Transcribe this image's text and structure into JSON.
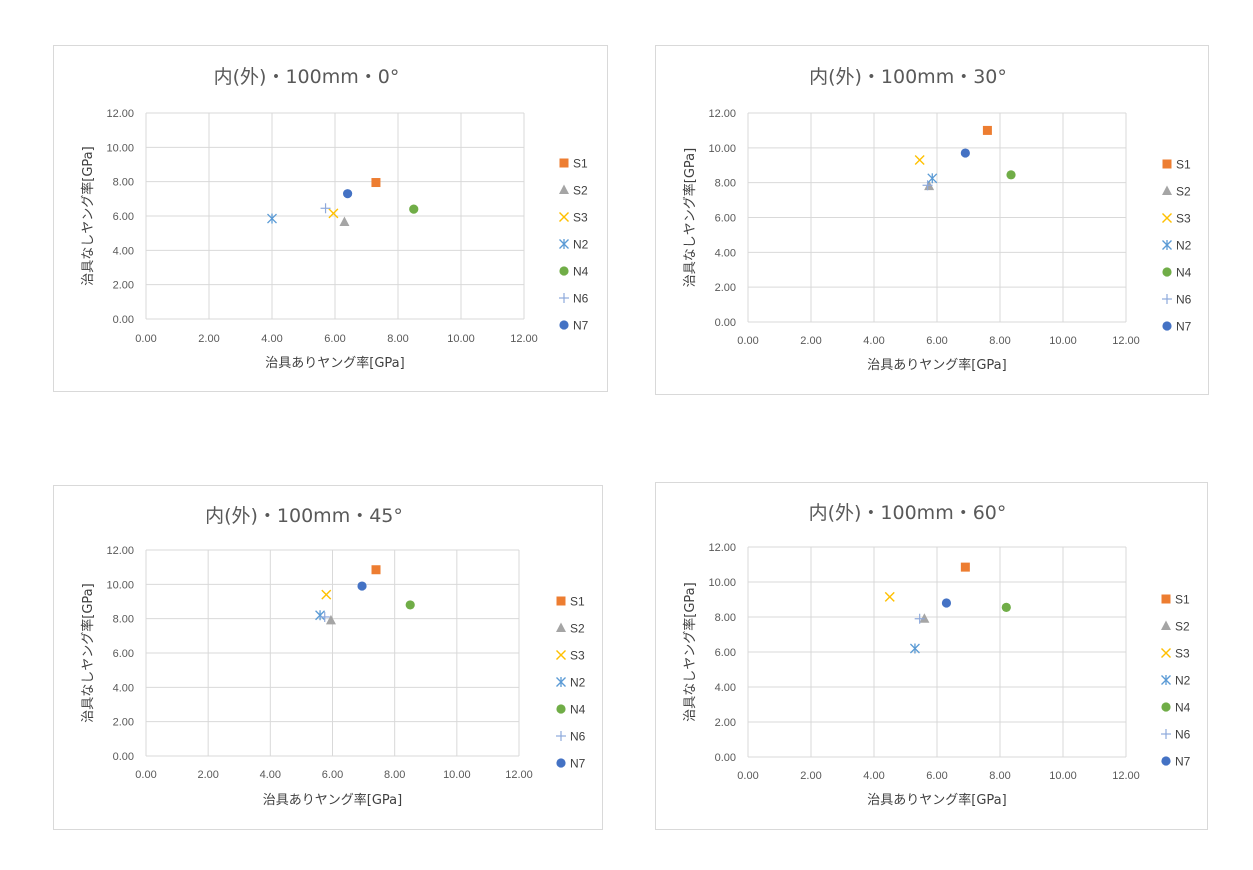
{
  "charts": [
    {
      "title": "内(外)・100mm・0°"
    },
    {
      "title": "内(外)・100mm・30°"
    },
    {
      "title": "内(外)・100mm・45°"
    },
    {
      "title": "内(外)・100mm・60°"
    }
  ],
  "colors": {
    "S1": "#ED7D31",
    "S2": "#A5A5A5",
    "S3": "#FFC000",
    "N2": "#5B9BD5",
    "N4": "#70AD47",
    "N6": "#8EA9DB",
    "N7": "#4472C4"
  },
  "markers": {
    "S1": "square",
    "S2": "triangle",
    "S3": "x",
    "N2": "star",
    "N4": "circle",
    "N6": "plus",
    "N7": "circle"
  },
  "chart_data": [
    {
      "type": "scatter",
      "title": "内(外)・100mm・0°",
      "xlabel": "治具ありヤング率[GPa]",
      "ylabel": "治具なしヤング率[GPa]",
      "xlim": [
        0,
        12
      ],
      "ylim": [
        0,
        12
      ],
      "xticks": [
        "0.00",
        "2.00",
        "4.00",
        "6.00",
        "8.00",
        "10.00",
        "12.00"
      ],
      "yticks": [
        "0.00",
        "2.00",
        "4.00",
        "6.00",
        "8.00",
        "10.00",
        "12.00"
      ],
      "grid": true,
      "legend": "right",
      "series": [
        {
          "name": "S1",
          "x": 7.3,
          "y": 7.95
        },
        {
          "name": "S2",
          "x": 6.3,
          "y": 5.65
        },
        {
          "name": "S3",
          "x": 5.95,
          "y": 6.15
        },
        {
          "name": "N2",
          "x": 4.0,
          "y": 5.85
        },
        {
          "name": "N4",
          "x": 8.5,
          "y": 6.4
        },
        {
          "name": "N6",
          "x": 5.7,
          "y": 6.45
        },
        {
          "name": "N7",
          "x": 6.4,
          "y": 7.3
        }
      ]
    },
    {
      "type": "scatter",
      "title": "内(外)・100mm・30°",
      "xlabel": "治具ありヤング率[GPa]",
      "ylabel": "治具なしヤング率[GPa]",
      "xlim": [
        0,
        12
      ],
      "ylim": [
        0,
        12
      ],
      "xticks": [
        "0.00",
        "2.00",
        "4.00",
        "6.00",
        "8.00",
        "10.00",
        "12.00"
      ],
      "yticks": [
        "0.00",
        "2.00",
        "4.00",
        "6.00",
        "8.00",
        "10.00",
        "12.00"
      ],
      "grid": true,
      "legend": "right",
      "series": [
        {
          "name": "S1",
          "x": 7.6,
          "y": 11.0
        },
        {
          "name": "S2",
          "x": 5.75,
          "y": 7.8
        },
        {
          "name": "S3",
          "x": 5.45,
          "y": 9.3
        },
        {
          "name": "N2",
          "x": 5.85,
          "y": 8.25
        },
        {
          "name": "N4",
          "x": 8.35,
          "y": 8.45
        },
        {
          "name": "N6",
          "x": 5.7,
          "y": 7.85
        },
        {
          "name": "N7",
          "x": 6.9,
          "y": 9.7
        }
      ]
    },
    {
      "type": "scatter",
      "title": "内(外)・100mm・45°",
      "xlabel": "治具ありヤング率[GPa]",
      "ylabel": "治具なしヤング率[GPa]",
      "xlim": [
        0,
        12
      ],
      "ylim": [
        0,
        12
      ],
      "xticks": [
        "0.00",
        "2.00",
        "4.00",
        "6.00",
        "8.00",
        "10.00",
        "12.00"
      ],
      "yticks": [
        "0.00",
        "2.00",
        "4.00",
        "6.00",
        "8.00",
        "10.00",
        "12.00"
      ],
      "grid": true,
      "legend": "right",
      "series": [
        {
          "name": "S1",
          "x": 7.4,
          "y": 10.85
        },
        {
          "name": "S2",
          "x": 5.95,
          "y": 7.9
        },
        {
          "name": "S3",
          "x": 5.8,
          "y": 9.4
        },
        {
          "name": "N2",
          "x": 5.6,
          "y": 8.2
        },
        {
          "name": "N4",
          "x": 8.5,
          "y": 8.8
        },
        {
          "name": "N6",
          "x": 5.75,
          "y": 8.1
        },
        {
          "name": "N7",
          "x": 6.95,
          "y": 9.9
        }
      ]
    },
    {
      "type": "scatter",
      "title": "内(外)・100mm・60°",
      "xlabel": "治具ありヤング率[GPa]",
      "ylabel": "治具なしヤング率[GPa]",
      "xlim": [
        0,
        12
      ],
      "ylim": [
        0,
        12
      ],
      "xticks": [
        "0.00",
        "2.00",
        "4.00",
        "6.00",
        "8.00",
        "10.00",
        "12.00"
      ],
      "yticks": [
        "0.00",
        "2.00",
        "4.00",
        "6.00",
        "8.00",
        "10.00",
        "12.00"
      ],
      "grid": true,
      "legend": "right",
      "series": [
        {
          "name": "S1",
          "x": 6.9,
          "y": 10.85
        },
        {
          "name": "S2",
          "x": 5.6,
          "y": 7.9
        },
        {
          "name": "S3",
          "x": 4.5,
          "y": 9.15
        },
        {
          "name": "N2",
          "x": 5.3,
          "y": 6.2
        },
        {
          "name": "N4",
          "x": 8.2,
          "y": 8.55
        },
        {
          "name": "N6",
          "x": 5.45,
          "y": 7.9
        },
        {
          "name": "N7",
          "x": 6.3,
          "y": 8.8
        }
      ]
    }
  ]
}
